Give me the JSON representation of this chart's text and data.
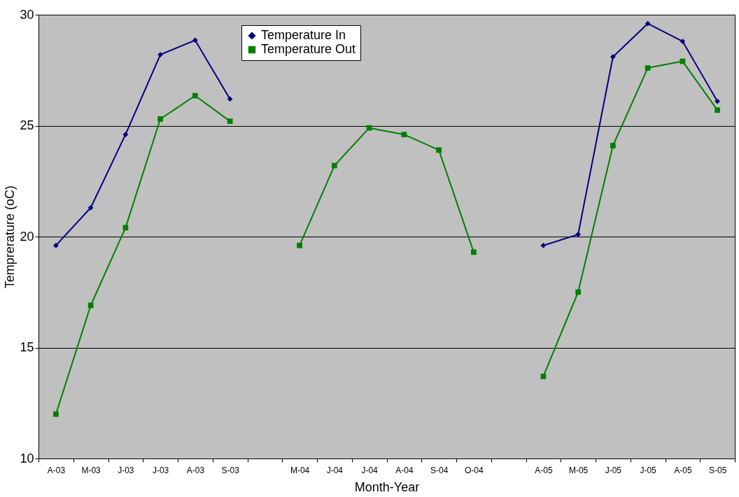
{
  "chart_data": {
    "type": "line",
    "xlabel": "Month-Year",
    "ylabel": "Temprerature (oC)",
    "categories": [
      "A-03",
      "M-03",
      "J-03",
      "J-03",
      "A-03",
      "S-03",
      null,
      "M-04",
      "J-04",
      "J-04",
      "A-04",
      "S-04",
      "O-04",
      null,
      "A-05",
      "M-05",
      "J-05",
      "J-05",
      "A-05",
      "S-05"
    ],
    "series": [
      {
        "name": "Temperature In",
        "color": "#000080",
        "marker": "diamond",
        "values": [
          19.6,
          21.3,
          24.6,
          28.2,
          28.85,
          26.2,
          null,
          null,
          null,
          null,
          null,
          null,
          null,
          null,
          19.6,
          20.1,
          28.1,
          29.6,
          28.8,
          26.1
        ]
      },
      {
        "name": "Temperature Out",
        "color": "#008000",
        "marker": "square",
        "values": [
          12.0,
          16.9,
          20.4,
          25.3,
          26.35,
          25.2,
          null,
          19.6,
          23.2,
          24.9,
          24.6,
          23.9,
          19.3,
          null,
          13.7,
          17.5,
          24.1,
          27.6,
          27.9,
          25.7
        ]
      }
    ],
    "ylim": [
      10,
      30
    ],
    "yticks": [
      10,
      15,
      20,
      25,
      30
    ],
    "grid": "y",
    "legend": "top",
    "line_style": "solid"
  }
}
